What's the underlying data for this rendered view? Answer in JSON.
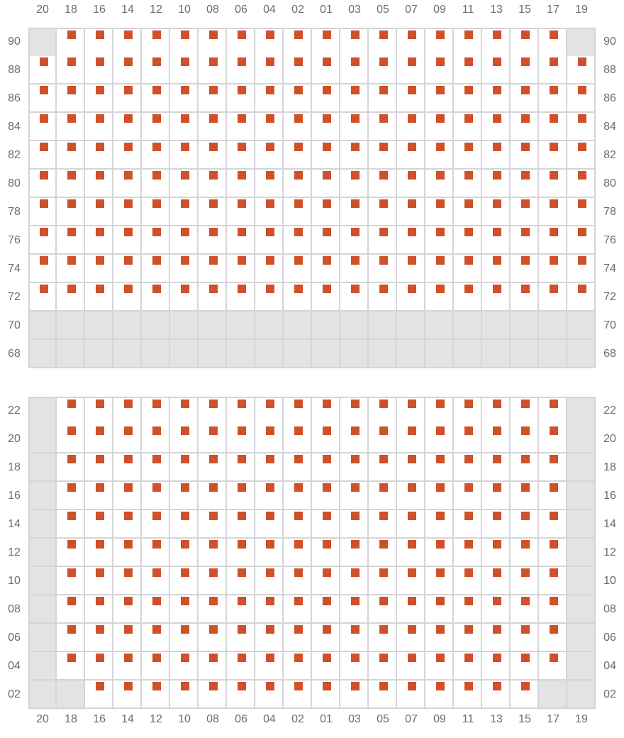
{
  "colors": {
    "seat": "#cf5029",
    "unavailable": "#e3e3e6",
    "grid": "#d5d5d9",
    "label": "#6b6b73"
  },
  "columns": [
    "20",
    "18",
    "16",
    "14",
    "12",
    "10",
    "08",
    "06",
    "04",
    "02",
    "01",
    "03",
    "05",
    "07",
    "09",
    "11",
    "13",
    "15",
    "17",
    "19"
  ],
  "sections": [
    {
      "rows": [
        {
          "label": "90",
          "unavailable": [
            "20",
            "19"
          ]
        },
        {
          "label": "88",
          "unavailable": []
        },
        {
          "label": "86",
          "unavailable": []
        },
        {
          "label": "84",
          "unavailable": []
        },
        {
          "label": "82",
          "unavailable": []
        },
        {
          "label": "80",
          "unavailable": []
        },
        {
          "label": "78",
          "unavailable": []
        },
        {
          "label": "76",
          "unavailable": []
        },
        {
          "label": "74",
          "unavailable": []
        },
        {
          "label": "72",
          "unavailable": []
        },
        {
          "label": "70",
          "unavailable": "all"
        },
        {
          "label": "68",
          "unavailable": "all"
        }
      ]
    },
    {
      "rows": [
        {
          "label": "22",
          "unavailable": [
            "20",
            "19"
          ]
        },
        {
          "label": "20",
          "unavailable": [
            "20",
            "19"
          ]
        },
        {
          "label": "18",
          "unavailable": [
            "20",
            "19"
          ]
        },
        {
          "label": "16",
          "unavailable": [
            "20",
            "19"
          ]
        },
        {
          "label": "14",
          "unavailable": [
            "20",
            "19"
          ]
        },
        {
          "label": "12",
          "unavailable": [
            "20",
            "19"
          ]
        },
        {
          "label": "10",
          "unavailable": [
            "20",
            "19"
          ]
        },
        {
          "label": "08",
          "unavailable": [
            "20",
            "19"
          ]
        },
        {
          "label": "06",
          "unavailable": [
            "20",
            "19"
          ]
        },
        {
          "label": "04",
          "unavailable": [
            "20",
            "19"
          ]
        },
        {
          "label": "02",
          "unavailable": [
            "20",
            "18",
            "17",
            "19"
          ]
        }
      ]
    }
  ]
}
